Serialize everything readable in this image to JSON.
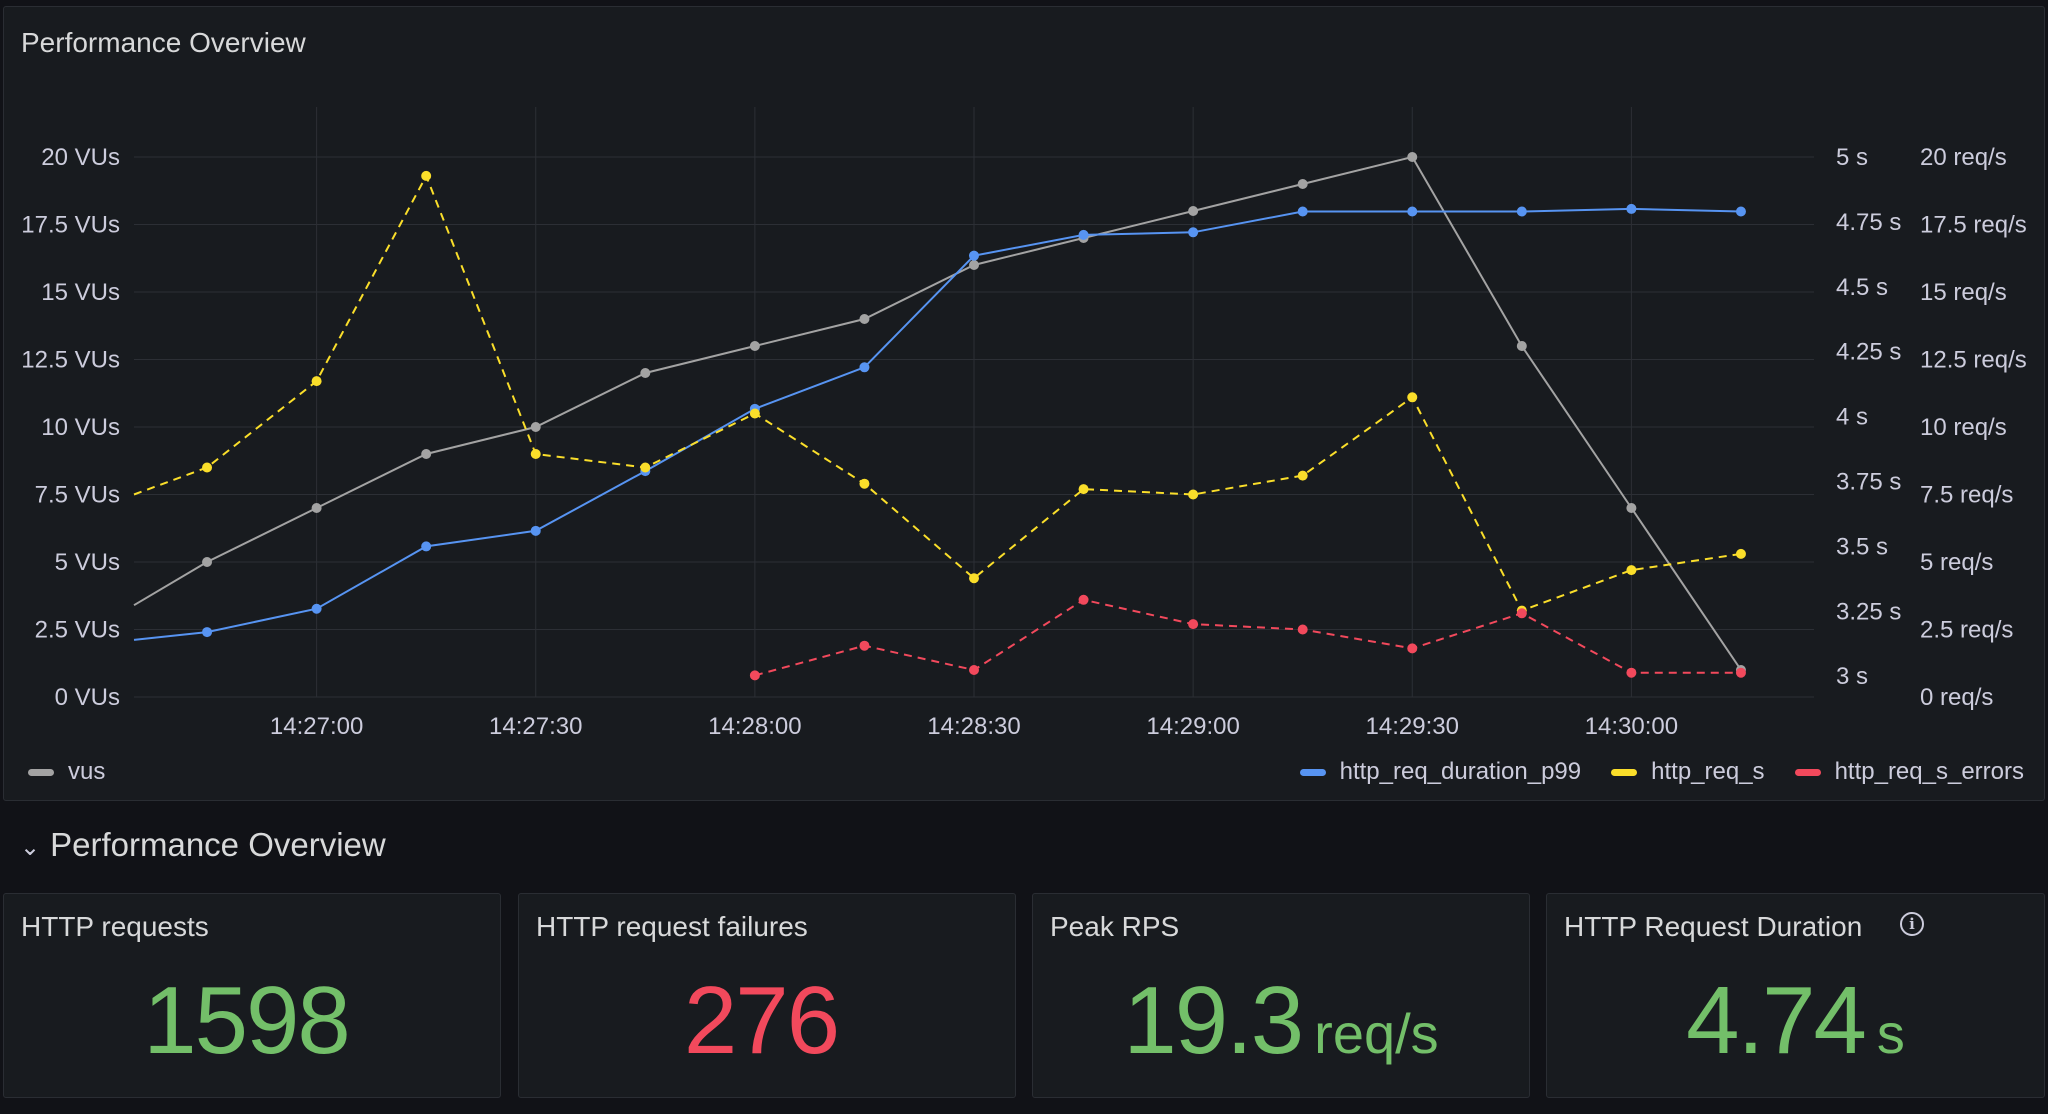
{
  "dashboard": {
    "chart_panel_title": "Performance Overview",
    "row_title": "Performance Overview",
    "row_chevron": "⌄"
  },
  "colors": {
    "vus": "#a3a3a3",
    "http_req_duration_p99": "#5794f2",
    "http_req_s": "#fade2a",
    "http_req_s_errors": "#f2495c",
    "stat_green": "#73bf69",
    "stat_red": "#f2495c"
  },
  "chart_data": {
    "type": "line",
    "title": "Performance Overview",
    "x": [
      "14:26:35",
      "14:26:45",
      "14:27:00",
      "14:27:15",
      "14:27:30",
      "14:27:45",
      "14:28:00",
      "14:28:15",
      "14:28:30",
      "14:28:45",
      "14:29:00",
      "14:29:15",
      "14:29:30",
      "14:29:45",
      "14:30:00",
      "14:30:15"
    ],
    "x_ticks": [
      "14:27:00",
      "14:27:30",
      "14:28:00",
      "14:28:30",
      "14:29:00",
      "14:29:30",
      "14:30:00"
    ],
    "y_left": {
      "unit": "VUs",
      "range": [
        0,
        20
      ],
      "ticks": [
        "0 VUs",
        "2.5 VUs",
        "5 VUs",
        "7.5 VUs",
        "10 VUs",
        "12.5 VUs",
        "15 VUs",
        "17.5 VUs",
        "20 VUs"
      ]
    },
    "y_right_duration": {
      "unit": "s",
      "range": [
        2.92,
        5.0
      ],
      "ticks": [
        "3 s",
        "3.25 s",
        "3.5 s",
        "3.75 s",
        "4 s",
        "4.25 s",
        "4.5 s",
        "4.75 s",
        "5 s"
      ]
    },
    "y_right_rps": {
      "unit": "req/s",
      "range": [
        0,
        20
      ],
      "ticks": [
        "0 req/s",
        "2.5 req/s",
        "5 req/s",
        "7.5 req/s",
        "10 req/s",
        "12.5 req/s",
        "15 req/s",
        "17.5 req/s",
        "20 req/s"
      ]
    },
    "grid": true,
    "series": [
      {
        "name": "vus",
        "axis": "left",
        "style": "solid",
        "values": [
          3.4,
          5.0,
          7.0,
          9.0,
          10.0,
          12.0,
          13.0,
          14.0,
          16.0,
          17.0,
          18.0,
          19.0,
          20.0,
          13.0,
          7.0,
          1.0
        ]
      },
      {
        "name": "http_req_duration_p99",
        "axis": "right_duration",
        "style": "solid",
        "values": [
          3.14,
          3.17,
          3.26,
          3.5,
          3.56,
          3.79,
          4.03,
          4.19,
          4.62,
          4.7,
          4.71,
          4.79,
          4.79,
          4.79,
          4.8,
          4.79
        ]
      },
      {
        "name": "http_req_s",
        "axis": "right_rps",
        "style": "dashed",
        "values": [
          7.5,
          8.5,
          11.7,
          19.3,
          9.0,
          8.5,
          10.5,
          7.9,
          4.4,
          7.7,
          7.5,
          8.2,
          11.1,
          3.2,
          4.7,
          5.3
        ]
      },
      {
        "name": "http_req_s_errors",
        "axis": "right_rps",
        "style": "dashed",
        "values": [
          null,
          null,
          null,
          null,
          null,
          null,
          0.8,
          1.9,
          1.0,
          3.6,
          2.7,
          2.5,
          1.8,
          3.1,
          0.9,
          0.9
        ]
      }
    ],
    "legend_left": [
      "vus"
    ],
    "legend_right": [
      "http_req_duration_p99",
      "http_req_s",
      "http_req_s_errors"
    ]
  },
  "stats": [
    {
      "title": "HTTP requests",
      "value": "1598",
      "unit": "",
      "color": "#73bf69"
    },
    {
      "title": "HTTP request failures",
      "value": "276",
      "unit": "",
      "color": "#f2495c"
    },
    {
      "title": "Peak RPS",
      "value": "19.3",
      "unit": "req/s",
      "color": "#73bf69"
    },
    {
      "title": "HTTP Request Duration",
      "value": "4.74",
      "unit": "s",
      "color": "#73bf69",
      "info_icon": "info-circle-icon"
    }
  ]
}
